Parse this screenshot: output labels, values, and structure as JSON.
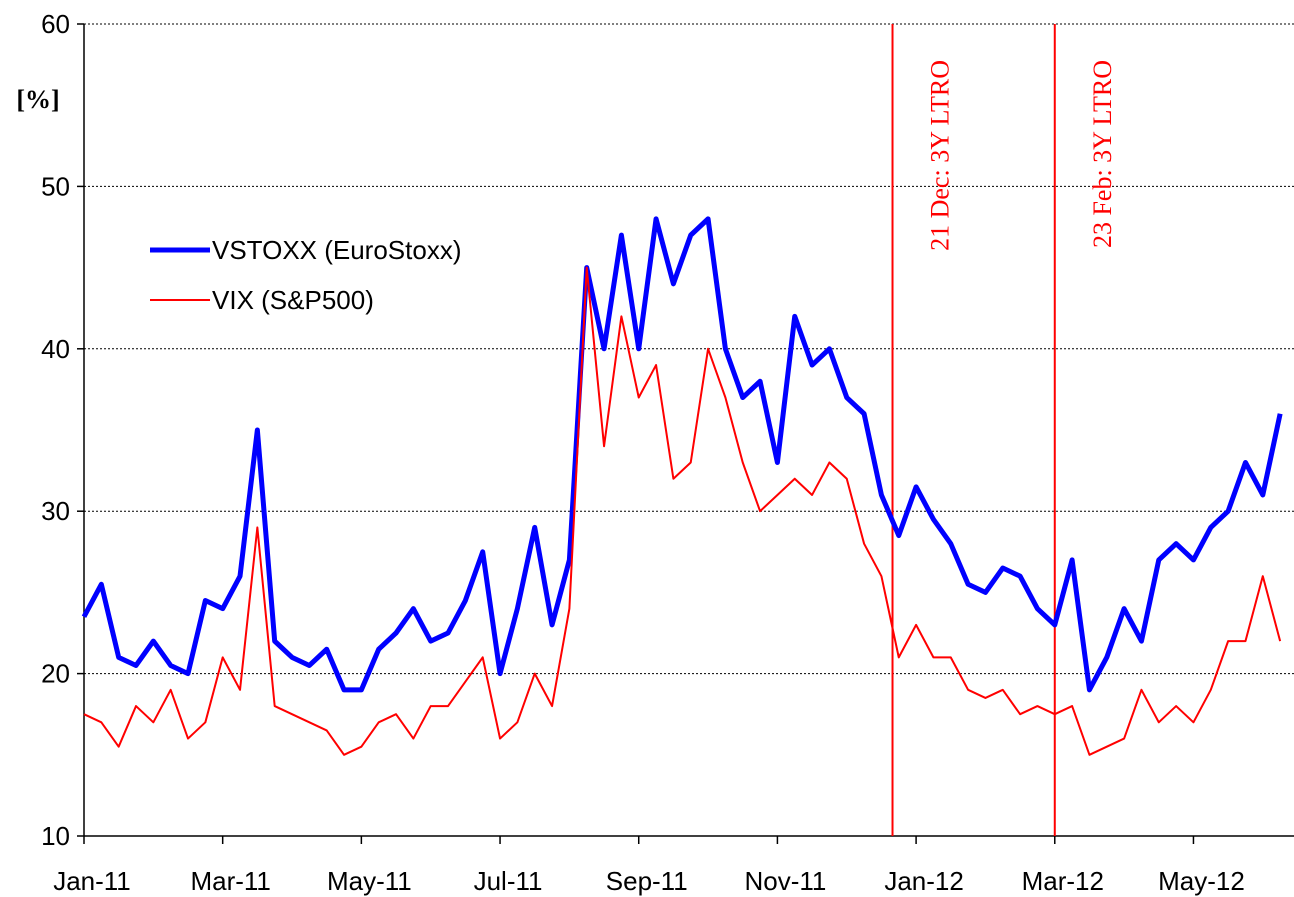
{
  "chart_data": {
    "type": "line",
    "ylabel": "[%]",
    "x": [
      0,
      0.25,
      0.5,
      0.75,
      1,
      1.25,
      1.5,
      1.75,
      2,
      2.25,
      2.5,
      2.75,
      3,
      3.25,
      3.5,
      3.75,
      4,
      4.25,
      4.5,
      4.75,
      5,
      5.25,
      5.5,
      5.75,
      6,
      6.25,
      6.5,
      6.75,
      7,
      7.25,
      7.5,
      7.75,
      8,
      8.25,
      8.5,
      8.75,
      9,
      9.25,
      9.5,
      9.75,
      10,
      10.25,
      10.5,
      10.75,
      11,
      11.25,
      11.5,
      11.75,
      12,
      12.25,
      12.5,
      12.75,
      13,
      13.25,
      13.5,
      13.75,
      14,
      14.25,
      14.5,
      14.75,
      15,
      15.25,
      15.5,
      15.75,
      16,
      16.25,
      16.5,
      16.75,
      17,
      17.25
    ],
    "series": [
      {
        "name": "VSTOXX (EuroStoxx)",
        "color": "#0000ff",
        "width": 5,
        "values": [
          23.5,
          25.5,
          21,
          20.5,
          22,
          20.5,
          20,
          24.5,
          24,
          26,
          35,
          22,
          21,
          20.5,
          21.5,
          19,
          19,
          21.5,
          22.5,
          24,
          22,
          22.5,
          24.5,
          27.5,
          20,
          24,
          29,
          23,
          27,
          45,
          40,
          47,
          40,
          48,
          44,
          47,
          48,
          40,
          37,
          38,
          33,
          42,
          39,
          40,
          37,
          36,
          31,
          28.5,
          31.5,
          29.5,
          28,
          25.5,
          25,
          26.5,
          26,
          24,
          23,
          27,
          19,
          21,
          24,
          22,
          27,
          28,
          27,
          29,
          30,
          33,
          31,
          36
        ]
      },
      {
        "name": "VIX (S&P500)",
        "color": "#ff0000",
        "width": 2,
        "values": [
          17.5,
          17,
          15.5,
          18,
          17,
          19,
          16,
          17,
          21,
          19,
          29,
          18,
          17.5,
          17,
          16.5,
          15,
          15.5,
          17,
          17.5,
          16,
          18,
          18,
          19.5,
          21,
          16,
          17,
          20,
          18,
          24,
          45,
          34,
          42,
          37,
          39,
          32,
          33,
          40,
          37,
          33,
          30,
          31,
          32,
          31,
          33,
          32,
          28,
          26,
          21,
          23,
          21,
          21,
          19,
          18.5,
          19,
          17.5,
          18,
          17.5,
          18,
          15,
          15.5,
          16,
          19,
          17,
          18,
          17,
          19,
          22,
          22,
          26,
          22
        ]
      }
    ],
    "xlim": [
      0,
      17.45
    ],
    "xticks": [
      {
        "value": 0,
        "label": "Jan-11"
      },
      {
        "value": 2,
        "label": "Mar-11"
      },
      {
        "value": 4,
        "label": "May-11"
      },
      {
        "value": 6,
        "label": "Jul-11"
      },
      {
        "value": 8,
        "label": "Sep-11"
      },
      {
        "value": 10,
        "label": "Nov-11"
      },
      {
        "value": 12,
        "label": "Jan-12"
      },
      {
        "value": 14,
        "label": "Mar-12"
      },
      {
        "value": 16,
        "label": "May-12"
      }
    ],
    "ylim": [
      10,
      60
    ],
    "yticks": [
      10,
      20,
      30,
      40,
      50,
      60
    ],
    "grid": true,
    "legend": "upper left",
    "annotations": [
      {
        "text": "21 Dec: 3Y LTRO",
        "x": 11.66,
        "color": "#ff0000"
      },
      {
        "text": "23 Feb: 3Y LTRO",
        "x": 14,
        "color": "#ff0000"
      }
    ]
  }
}
